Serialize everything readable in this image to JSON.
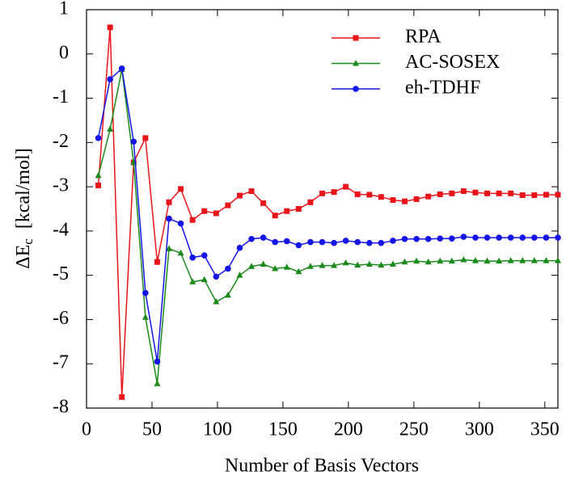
{
  "chart_data": {
    "type": "line",
    "xlabel": "Number of Basis Vectors",
    "ylabel": {
      "main": "ΔE",
      "sub": "c",
      "unit": "[kcal/mol]"
    },
    "xlim": [
      0,
      360
    ],
    "xticks": [
      0,
      50,
      100,
      150,
      200,
      250,
      300,
      350
    ],
    "ylim": [
      -8,
      1
    ],
    "yticks": [
      -8,
      -7,
      -6,
      -5,
      -4,
      -3,
      -2,
      -1,
      0,
      1
    ],
    "legend": "upper right",
    "x": [
      9,
      18,
      27,
      36,
      45,
      54,
      63,
      72,
      81,
      90,
      99,
      108,
      117,
      126,
      135,
      144,
      153,
      162,
      171,
      180,
      189,
      198,
      207,
      216,
      225,
      234,
      243,
      252,
      261,
      270,
      279,
      288,
      297,
      306,
      315,
      324,
      333,
      342,
      351,
      360
    ],
    "series": [
      {
        "name": "RPA",
        "color": "#e8151b",
        "marker": "square",
        "values": [
          -2.97,
          0.6,
          -7.75,
          -2.45,
          -1.9,
          -4.7,
          -3.35,
          -3.05,
          -3.75,
          -3.55,
          -3.6,
          -3.42,
          -3.2,
          -3.1,
          -3.37,
          -3.65,
          -3.55,
          -3.5,
          -3.35,
          -3.15,
          -3.12,
          -3.0,
          -3.17,
          -3.18,
          -3.23,
          -3.3,
          -3.33,
          -3.28,
          -3.22,
          -3.17,
          -3.15,
          -3.1,
          -3.13,
          -3.15,
          -3.15,
          -3.15,
          -3.19,
          -3.19,
          -3.18,
          -3.18
        ]
      },
      {
        "name": "AC-SOSEX",
        "color": "#1a8a1a",
        "marker": "triangle",
        "values": [
          -2.75,
          -1.7,
          -0.35,
          -2.45,
          -5.95,
          -7.45,
          -4.4,
          -4.5,
          -5.15,
          -5.1,
          -5.6,
          -5.45,
          -5.0,
          -4.8,
          -4.75,
          -4.85,
          -4.82,
          -4.92,
          -4.8,
          -4.78,
          -4.78,
          -4.72,
          -4.77,
          -4.75,
          -4.77,
          -4.75,
          -4.7,
          -4.68,
          -4.7,
          -4.68,
          -4.68,
          -4.65,
          -4.67,
          -4.68,
          -4.68,
          -4.67,
          -4.67,
          -4.67,
          -4.67,
          -4.67
        ]
      },
      {
        "name": "eh-TDHF",
        "color": "#1515e8",
        "marker": "circle",
        "values": [
          -1.9,
          -0.57,
          -0.33,
          -1.98,
          -5.4,
          -6.95,
          -3.72,
          -3.83,
          -4.6,
          -4.55,
          -5.03,
          -4.85,
          -4.38,
          -4.18,
          -4.15,
          -4.25,
          -4.23,
          -4.32,
          -4.25,
          -4.25,
          -4.27,
          -4.22,
          -4.25,
          -4.27,
          -4.27,
          -4.22,
          -4.18,
          -4.18,
          -4.18,
          -4.17,
          -4.17,
          -4.13,
          -4.15,
          -4.15,
          -4.15,
          -4.15,
          -4.15,
          -4.15,
          -4.15,
          -4.15
        ]
      }
    ]
  }
}
